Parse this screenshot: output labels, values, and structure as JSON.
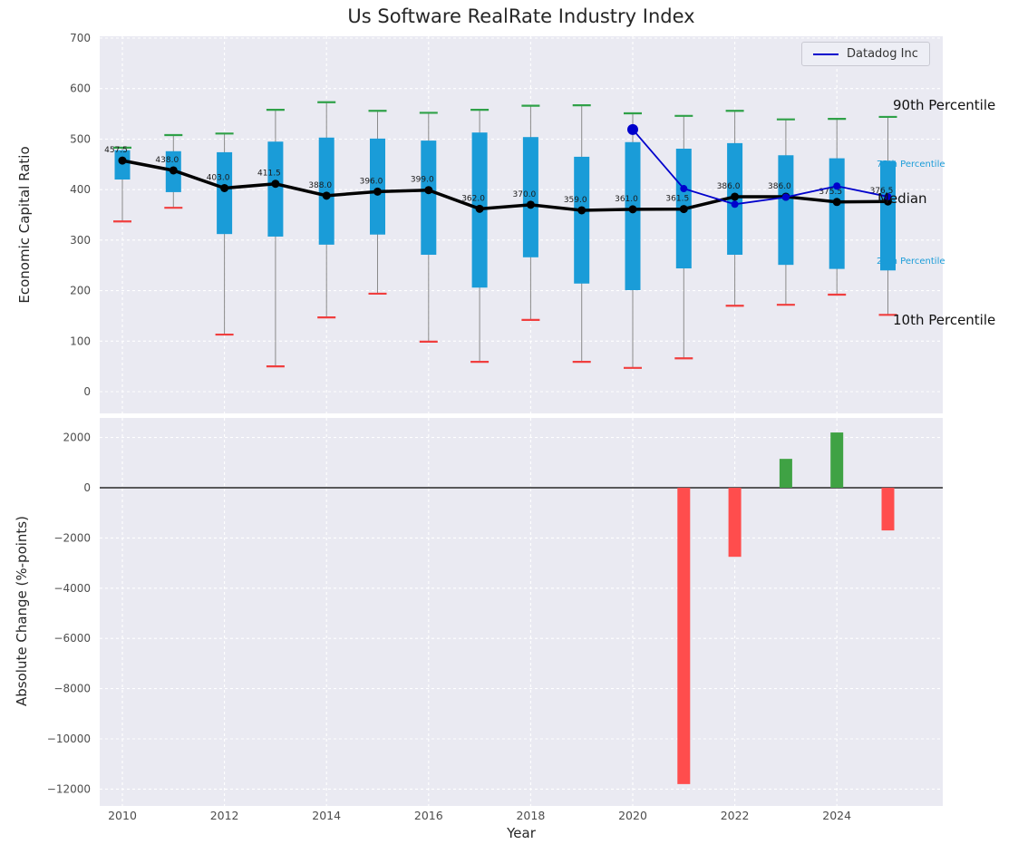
{
  "figure": {
    "title": "Us Software RealRate Industry Index"
  },
  "legend": {
    "label": "Datadog Inc",
    "color": "#0000cc"
  },
  "chart_data": [
    {
      "type": "box-whisker-with-median-line",
      "title": "Us Software RealRate Industry Index",
      "ylabel": "Economic Capital Ratio",
      "ylim": [
        0,
        700
      ],
      "yticks": [
        0,
        100,
        200,
        300,
        400,
        500,
        600,
        700
      ],
      "ytick_labels": [
        "0",
        "100",
        "200",
        "300",
        "400",
        "500",
        "600",
        "700"
      ],
      "xticks": [
        2010,
        2012,
        2014,
        2016,
        2018,
        2020,
        2022,
        2024
      ],
      "grid": true,
      "years": [
        2010,
        2011,
        2012,
        2013,
        2014,
        2015,
        2016,
        2017,
        2018,
        2019,
        2020,
        2021,
        2022,
        2023,
        2024,
        2025
      ],
      "p10": [
        337,
        364,
        113,
        50,
        147,
        194,
        99,
        59,
        142,
        59,
        47,
        66,
        170,
        172,
        192,
        152
      ],
      "p25": [
        420,
        395,
        312,
        307,
        291,
        311,
        271,
        206,
        266,
        214,
        201,
        244,
        271,
        251,
        243,
        240
      ],
      "median": [
        457.5,
        438.0,
        403.0,
        411.5,
        388.0,
        396.0,
        399.0,
        362.0,
        370.0,
        359.0,
        361.0,
        361.5,
        386.0,
        386.0,
        375.5,
        376.5
      ],
      "median_labels": [
        "457.5",
        "438.0",
        "403.0",
        "411.5",
        "388.0",
        "396.0",
        "399.0",
        "362.0",
        "370.0",
        "359.0",
        "361.0",
        "361.5",
        "386.0",
        "386.0",
        "375.5",
        "376.5"
      ],
      "p75": [
        478,
        476,
        474,
        495,
        503,
        501,
        497,
        513,
        504,
        465,
        494,
        481,
        492,
        468,
        462,
        457
      ],
      "p90": [
        483,
        508,
        511,
        558,
        573,
        556,
        552,
        558,
        566,
        567,
        551,
        546,
        556,
        539,
        540,
        544
      ],
      "series": [
        {
          "name": "Datadog Inc",
          "x": [
            2020,
            2021,
            2022,
            2023,
            2024,
            2025
          ],
          "y": [
            519,
            402,
            371,
            385,
            407,
            386
          ],
          "color": "#0000cc"
        }
      ],
      "colors": {
        "box": "#1a9cd8",
        "p90_cap": "#2fa148",
        "p10_cap": "#f03e3e",
        "median": "#000000",
        "whisker": "#8a8a8a"
      },
      "annotations": [
        {
          "label": "90th Percentile",
          "x": 985,
          "y": 107,
          "size": 15,
          "color": "#111111"
        },
        {
          "label": "75th Percentile",
          "x": 967,
          "y": 176,
          "size": 10,
          "color": "#1a9cd8"
        },
        {
          "label": "Median",
          "x": 968,
          "y": 210,
          "size": 15,
          "color": "#111111"
        },
        {
          "label": "25th Percentile",
          "x": 967,
          "y": 283,
          "size": 10,
          "color": "#1a9cd8"
        },
        {
          "label": "10th Percentile",
          "x": 985,
          "y": 344,
          "size": 15,
          "color": "#111111"
        }
      ]
    },
    {
      "type": "bar",
      "ylabel": "Absolute Change (%-points)",
      "xlabel": "Year",
      "ylim": [
        -12600,
        2600
      ],
      "yticks": [
        2000,
        0,
        -2000,
        -4000,
        -6000,
        -8000,
        -10000,
        -12000
      ],
      "ytick_labels": [
        "2000",
        "0",
        "−2000",
        "−4000",
        "−6000",
        "−8000",
        "−10000",
        "−12000"
      ],
      "xticks": [
        2010,
        2012,
        2014,
        2016,
        2018,
        2020,
        2022,
        2024
      ],
      "xtick_labels": [
        "2010",
        "2012",
        "2014",
        "2016",
        "2018",
        "2020",
        "2022",
        "2024"
      ],
      "grid": true,
      "years": [
        2010,
        2011,
        2012,
        2013,
        2014,
        2015,
        2016,
        2017,
        2018,
        2019,
        2020,
        2021,
        2022,
        2023,
        2024,
        2025
      ],
      "values": [
        null,
        null,
        null,
        null,
        null,
        null,
        null,
        null,
        null,
        null,
        null,
        -11800,
        -2750,
        1150,
        2200,
        -1700
      ],
      "colors": {
        "positive": "#3fa244",
        "negative": "#ff4d4d",
        "zero_line": "#000000"
      }
    }
  ]
}
